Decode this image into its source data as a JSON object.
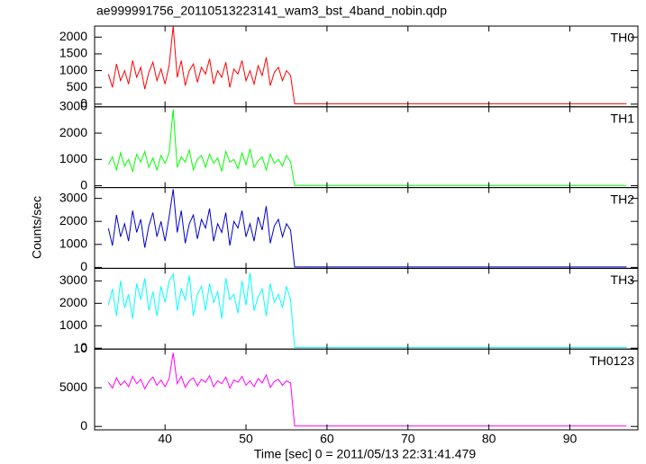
{
  "chart_data": {
    "type": "line",
    "title": "ae999991756_20110513223141_wam3_bst_4band_nobin.qdp",
    "xlabel": "Time [sec] 0 = 2011/05/13 22:31:41.479",
    "ylabel": "Counts/sec",
    "xlim": [
      31.3,
      98.4
    ],
    "xticks": [
      40,
      50,
      60,
      70,
      80,
      90
    ],
    "x": [
      33,
      33.5,
      34,
      34.5,
      35,
      35.5,
      36,
      36.5,
      37,
      37.5,
      38,
      38.5,
      39,
      39.5,
      40,
      40.5,
      41,
      41.5,
      42,
      42.5,
      43,
      43.5,
      44,
      44.5,
      45,
      45.5,
      46,
      46.5,
      47,
      47.5,
      48,
      48.5,
      49,
      49.5,
      50,
      50.5,
      51,
      51.5,
      52,
      52.5,
      53,
      53.5,
      54,
      54.5,
      55,
      55.5,
      56,
      97
    ],
    "series": [
      {
        "name": "TH0",
        "color": "#ff0000",
        "ylim": [
          -80,
          2330
        ],
        "yticks": [
          0,
          500,
          1000,
          1500,
          2000
        ],
        "values": [
          900,
          500,
          1200,
          700,
          1000,
          600,
          1300,
          800,
          1100,
          450,
          950,
          1250,
          700,
          1050,
          600,
          1150,
          2330,
          800,
          1300,
          550,
          1000,
          1200,
          650,
          1100,
          900,
          1350,
          600,
          1000,
          800,
          1250,
          500,
          1050,
          900,
          1300,
          700,
          1000,
          600,
          1150,
          850,
          1400,
          550,
          950,
          1100,
          700,
          1000,
          850,
          10,
          10
        ]
      },
      {
        "name": "TH1",
        "color": "#00ff00",
        "ylim": [
          -70,
          3000
        ],
        "yticks": [
          0,
          1000,
          2000,
          3000
        ],
        "values": [
          800,
          1100,
          600,
          1250,
          750,
          1000,
          550,
          1200,
          900,
          1300,
          700,
          1050,
          600,
          1150,
          850,
          1250,
          2900,
          700,
          1100,
          900,
          1350,
          600,
          1000,
          1150,
          700,
          1200,
          850,
          1050,
          550,
          1300,
          900,
          1000,
          650,
          1250,
          800,
          1400,
          700,
          950,
          1100,
          600,
          1200,
          850,
          1000,
          750,
          1150,
          900,
          10,
          10
        ]
      },
      {
        "name": "TH2",
        "color": "#0000cc",
        "ylim": [
          -40,
          3470
        ],
        "yticks": [
          0,
          1000,
          2000,
          3000
        ],
        "values": [
          1700,
          950,
          2280,
          1330,
          1900,
          1140,
          2470,
          1520,
          2090,
          860,
          1800,
          2380,
          1330,
          2000,
          1140,
          2190,
          3400,
          1520,
          2470,
          1050,
          1900,
          2280,
          1240,
          2090,
          1710,
          2560,
          1140,
          1900,
          1520,
          2380,
          950,
          2000,
          1710,
          2470,
          1330,
          1900,
          1140,
          2190,
          1620,
          2660,
          1050,
          1800,
          2090,
          1330,
          1900,
          1620,
          20,
          20
        ]
      },
      {
        "name": "TH3",
        "color": "#00ffff",
        "ylim": [
          -40,
          3560
        ],
        "yticks": [
          0,
          1000,
          2000,
          3000
        ],
        "values": [
          1920,
          2640,
          1440,
          3000,
          1800,
          2400,
          1320,
          2880,
          2160,
          3120,
          1680,
          2520,
          1440,
          2760,
          2040,
          3000,
          3300,
          1680,
          2640,
          2160,
          3240,
          1440,
          2400,
          2760,
          1680,
          2880,
          2040,
          2520,
          1320,
          3120,
          2160,
          2400,
          1560,
          3000,
          1920,
          3360,
          1680,
          2280,
          2640,
          1440,
          2880,
          2040,
          2400,
          1800,
          2760,
          2160,
          30,
          30
        ]
      },
      {
        "name": "TH0123",
        "color": "#ff00ff",
        "ylim": [
          -440,
          10000
        ],
        "yticks": [
          0,
          5000,
          {
            "value": 10000,
            "label": "10"
          }
        ],
        "values": [
          5700,
          4950,
          6280,
          5330,
          5900,
          5140,
          6470,
          5520,
          6090,
          4860,
          5800,
          6380,
          5330,
          6000,
          5140,
          6190,
          9500,
          5520,
          6470,
          5050,
          5900,
          6280,
          5240,
          6090,
          5710,
          6560,
          5140,
          5900,
          5520,
          6380,
          4950,
          6000,
          5710,
          6470,
          5330,
          5900,
          5140,
          6190,
          5620,
          6660,
          5050,
          5800,
          6090,
          5330,
          5900,
          5620,
          60,
          60
        ]
      }
    ]
  }
}
